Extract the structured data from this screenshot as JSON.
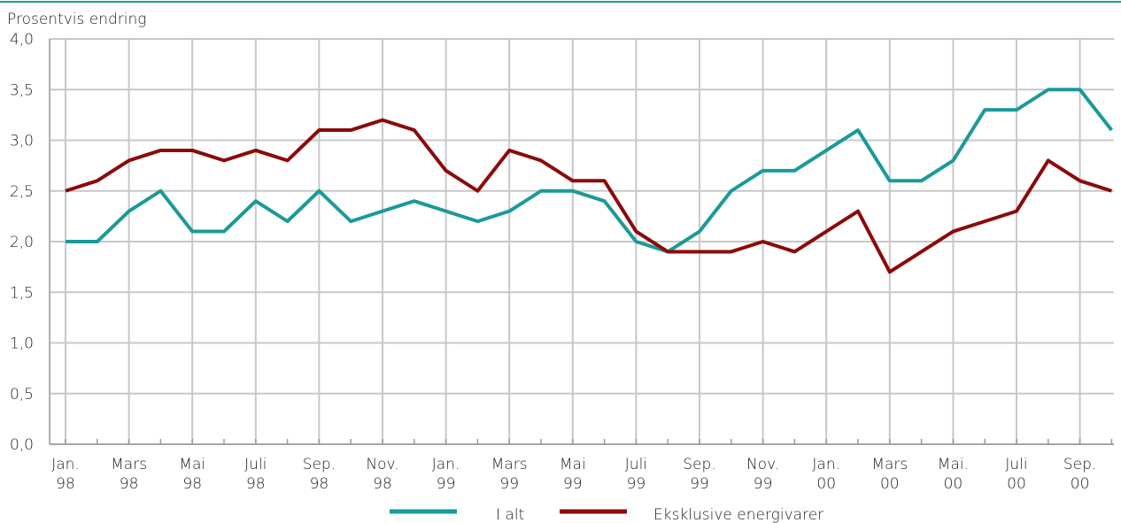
{
  "chart_data": {
    "type": "line",
    "y_label": "Prosentvis endring",
    "categories": [
      "Jan. 98",
      null,
      "Mars 98",
      null,
      "Mai 98",
      null,
      "Juli 98",
      null,
      "Sep. 98",
      null,
      "Nov. 98",
      null,
      "Jan. 99",
      null,
      "Mars 99",
      null,
      "Mai 99",
      null,
      "Juli 99",
      null,
      "Sep. 99",
      null,
      "Nov. 99",
      null,
      "Jan. 00",
      null,
      "Mars 00",
      null,
      "Mai. 00",
      null,
      "Juli 00",
      null,
      "Sep. 00",
      null
    ],
    "series": [
      {
        "name": "I alt",
        "color": "#1a9a98",
        "values": [
          2.0,
          2.0,
          2.3,
          2.5,
          2.1,
          2.1,
          2.4,
          2.2,
          2.5,
          2.2,
          2.3,
          2.4,
          2.3,
          2.2,
          2.3,
          2.5,
          2.5,
          2.4,
          2.0,
          1.9,
          2.1,
          2.5,
          2.7,
          2.7,
          2.9,
          3.1,
          2.6,
          2.6,
          2.8,
          3.3,
          3.3,
          3.5,
          3.5,
          3.1
        ]
      },
      {
        "name": "Eksklusive energivarer",
        "color": "#8b0a0a",
        "values": [
          2.5,
          2.6,
          2.8,
          2.9,
          2.9,
          2.8,
          2.9,
          2.8,
          3.1,
          3.1,
          3.2,
          3.1,
          2.7,
          2.5,
          2.9,
          2.8,
          2.6,
          2.6,
          2.1,
          1.9,
          1.9,
          1.9,
          2.0,
          1.9,
          2.1,
          2.3,
          1.7,
          1.9,
          2.1,
          2.2,
          2.3,
          2.8,
          2.6,
          2.5
        ]
      }
    ],
    "ylim": [
      0,
      4
    ],
    "yticks": [
      {
        "value": 0,
        "label": "0,0"
      },
      {
        "value": 0.5,
        "label": "0,5"
      },
      {
        "value": 1,
        "label": "1,0"
      },
      {
        "value": 1.5,
        "label": "1,5"
      },
      {
        "value": 2,
        "label": "2,0"
      },
      {
        "value": 2.5,
        "label": "2,5"
      },
      {
        "value": 3,
        "label": "3,0"
      },
      {
        "value": 3.5,
        "label": "3,5"
      },
      {
        "value": 4,
        "label": "4,0"
      }
    ],
    "grid": true,
    "legend": "bottom"
  }
}
